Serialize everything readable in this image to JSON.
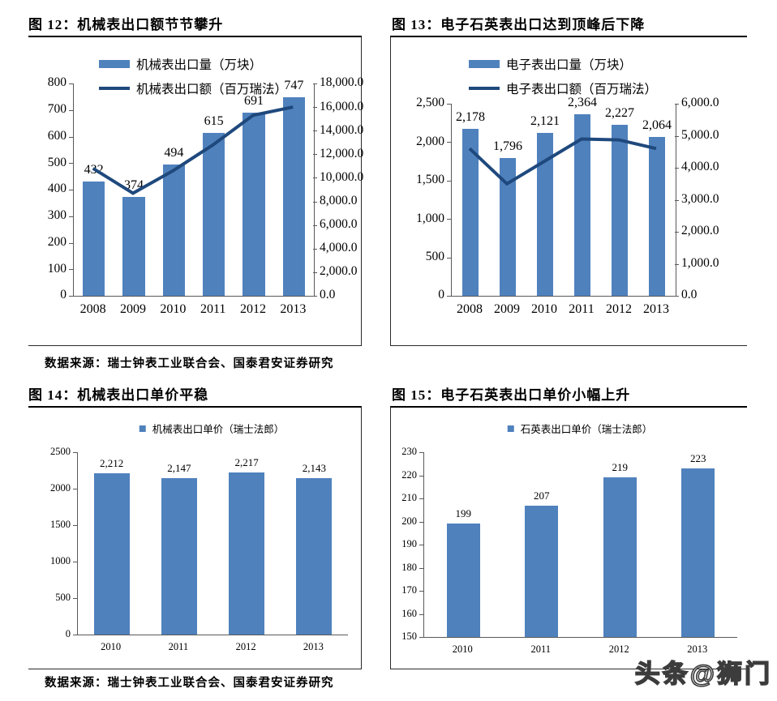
{
  "page": {
    "source_top": "数据来源：瑞士钟表工业联合会、国泰君安证券研究",
    "source_bottom": "数据来源：瑞士钟表工业联合会、国泰君安证券研究",
    "watermark": "头条@狮门"
  },
  "colors": {
    "bar": "#4F81BD",
    "line": "#1F497D",
    "axis": "#595959"
  },
  "chart_data": [
    {
      "type": "bar",
      "title": "图 12：机械表出口额节节攀升",
      "categories": [
        "2008",
        "2009",
        "2010",
        "2011",
        "2012",
        "2013"
      ],
      "series": [
        {
          "name": "机械表出口量（万块）",
          "type": "bar",
          "axis": "left",
          "values": [
            432,
            374,
            494,
            615,
            691,
            747
          ],
          "labels": [
            "432",
            "374",
            "494",
            "615",
            "691",
            "747"
          ]
        },
        {
          "name": "机械表出口额（百万瑞法）",
          "type": "line",
          "axis": "right",
          "values": [
            10800,
            8700,
            10600,
            12800,
            15300,
            16000
          ]
        }
      ],
      "left_axis": {
        "min": 0,
        "max": 800,
        "ticks": [
          "800",
          "700",
          "600",
          "500",
          "400",
          "300",
          "200",
          "100",
          "0"
        ]
      },
      "right_axis": {
        "min": 0,
        "max": 18000,
        "ticks": [
          "18,000.0",
          "16,000.0",
          "14,000.0",
          "12,000.0",
          "10,000.0",
          "8,000.0",
          "6,000.0",
          "4,000.0",
          "2,000.0",
          "0.0"
        ]
      },
      "legend_position": "top-center",
      "grid": false
    },
    {
      "type": "bar",
      "title": "图 13：电子石英表出口达到顶峰后下降",
      "categories": [
        "2008",
        "2009",
        "2010",
        "2011",
        "2012",
        "2013"
      ],
      "series": [
        {
          "name": "电子表出口量（万块）",
          "type": "bar",
          "axis": "left",
          "values": [
            2178,
            1796,
            2121,
            2364,
            2227,
            2064
          ],
          "labels": [
            "2,178",
            "1,796",
            "2,121",
            "2,364",
            "2,227",
            "2,064"
          ]
        },
        {
          "name": "电子表出口额（百万瑞法）",
          "type": "line",
          "axis": "right",
          "values": [
            4600,
            3500,
            4200,
            4900,
            4870,
            4600
          ]
        }
      ],
      "left_axis": {
        "min": 0,
        "max": 2500,
        "ticks": [
          "2,500",
          "2,000",
          "1,500",
          "1,000",
          "500",
          "0"
        ]
      },
      "right_axis": {
        "min": 0,
        "max": 6000,
        "ticks": [
          "6,000.0",
          "5,000.0",
          "4,000.0",
          "3,000.0",
          "2,000.0",
          "1,000.0",
          "0.0"
        ]
      },
      "legend_position": "top-center",
      "grid": false
    },
    {
      "type": "bar",
      "title": "图 14：机械表出口单价平稳",
      "categories": [
        "2010",
        "2011",
        "2012",
        "2013"
      ],
      "series": [
        {
          "name": "机械表出口单价（瑞士法郎）",
          "type": "bar",
          "axis": "left",
          "values": [
            2212,
            2147,
            2217,
            2143
          ],
          "labels": [
            "2,212",
            "2,147",
            "2,217",
            "2,143"
          ]
        }
      ],
      "left_axis": {
        "min": 0,
        "max": 2500,
        "ticks": [
          "2500",
          "2000",
          "1500",
          "1000",
          "500",
          "0"
        ]
      },
      "legend_position": "top-center",
      "grid": false
    },
    {
      "type": "bar",
      "title": "图 15：电子石英表出口单价小幅上升",
      "categories": [
        "2010",
        "2011",
        "2012",
        "2013"
      ],
      "series": [
        {
          "name": "石英表出口单价（瑞士法郎）",
          "type": "bar",
          "axis": "left",
          "values": [
            199,
            207,
            219,
            223
          ],
          "labels": [
            "199",
            "207",
            "219",
            "223"
          ]
        }
      ],
      "left_axis": {
        "min": 150,
        "max": 230,
        "ticks": [
          "230",
          "220",
          "210",
          "200",
          "190",
          "180",
          "170",
          "160",
          "150"
        ]
      },
      "legend_position": "top-center",
      "grid": false
    }
  ]
}
